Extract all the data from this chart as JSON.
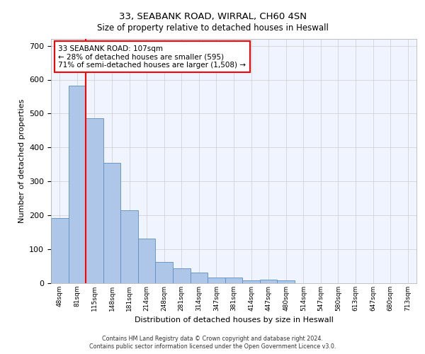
{
  "title1": "33, SEABANK ROAD, WIRRAL, CH60 4SN",
  "title2": "Size of property relative to detached houses in Heswall",
  "xlabel": "Distribution of detached houses by size in Heswall",
  "ylabel": "Number of detached properties",
  "bar_labels": [
    "48sqm",
    "81sqm",
    "115sqm",
    "148sqm",
    "181sqm",
    "214sqm",
    "248sqm",
    "281sqm",
    "314sqm",
    "347sqm",
    "381sqm",
    "414sqm",
    "447sqm",
    "480sqm",
    "514sqm",
    "547sqm",
    "580sqm",
    "613sqm",
    "647sqm",
    "680sqm",
    "713sqm"
  ],
  "bar_values": [
    192,
    583,
    487,
    355,
    216,
    132,
    63,
    44,
    31,
    16,
    16,
    9,
    10,
    8,
    0,
    0,
    0,
    0,
    0,
    0,
    0
  ],
  "bar_color": "#aec6e8",
  "bar_edgecolor": "#5a8fc2",
  "grid_color": "#cccccc",
  "bg_color": "#f0f4ff",
  "vline_color": "red",
  "vline_x_index": 1.5,
  "annotation_text": "33 SEABANK ROAD: 107sqm\n← 28% of detached houses are smaller (595)\n71% of semi-detached houses are larger (1,508) →",
  "annotation_box_color": "white",
  "annotation_box_edgecolor": "red",
  "ylim": [
    0,
    720
  ],
  "yticks": [
    0,
    100,
    200,
    300,
    400,
    500,
    600,
    700
  ],
  "footer1": "Contains HM Land Registry data © Crown copyright and database right 2024.",
  "footer2": "Contains public sector information licensed under the Open Government Licence v3.0."
}
